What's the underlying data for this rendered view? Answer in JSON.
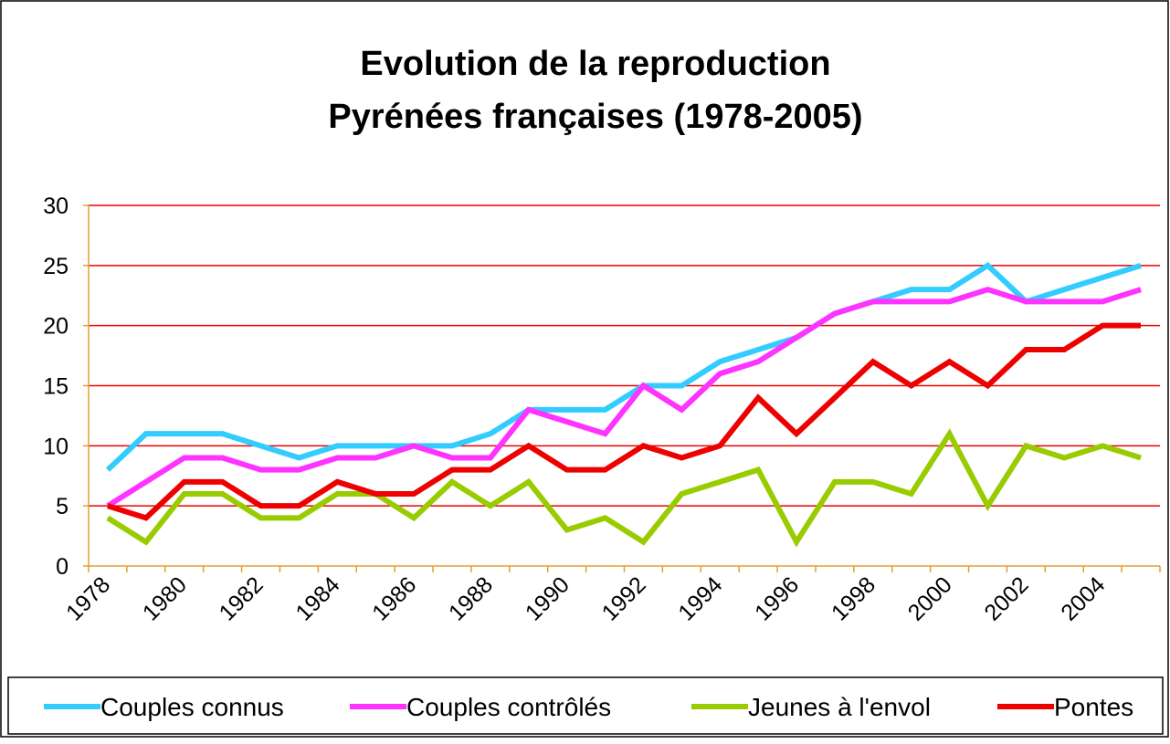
{
  "chart_data": {
    "type": "line",
    "title": "Evolution de la reproduction",
    "subtitle": "Pyrénées françaises (1978-2005)",
    "categories": [
      "1978",
      null,
      "1980",
      null,
      "1982",
      null,
      "1984",
      null,
      "1986",
      null,
      "1988",
      null,
      "1990",
      null,
      "1992",
      null,
      "1994",
      null,
      "1996",
      null,
      "1998",
      null,
      "2000",
      null,
      "2002",
      null,
      "2004",
      null
    ],
    "series": [
      {
        "name": "Couples connus",
        "color": "#33ccff",
        "values": [
          8,
          11,
          11,
          11,
          10,
          9,
          10,
          10,
          10,
          10,
          11,
          13,
          13,
          13,
          15,
          15,
          17,
          18,
          19,
          21,
          22,
          23,
          23,
          25,
          22,
          23,
          24,
          25
        ]
      },
      {
        "name": "Couples contrôlés",
        "color": "#ff33ff",
        "values": [
          5,
          7,
          9,
          9,
          8,
          8,
          9,
          9,
          10,
          9,
          9,
          13,
          12,
          11,
          15,
          13,
          16,
          17,
          19,
          21,
          22,
          22,
          22,
          23,
          22,
          22,
          22,
          23
        ]
      },
      {
        "name": "Jeunes à l'envol",
        "color": "#99cc00",
        "values": [
          4,
          2,
          6,
          6,
          4,
          4,
          6,
          6,
          4,
          7,
          5,
          7,
          3,
          4,
          2,
          6,
          7,
          8,
          2,
          7,
          7,
          6,
          11,
          5,
          10,
          9,
          10,
          9
        ]
      },
      {
        "name": "Pontes",
        "color": "#ee0000",
        "values": [
          5,
          4,
          7,
          7,
          5,
          5,
          7,
          6,
          6,
          8,
          8,
          10,
          8,
          8,
          10,
          9,
          10,
          14,
          11,
          14,
          17,
          15,
          17,
          15,
          18,
          18,
          20,
          20
        ]
      }
    ],
    "ylim": [
      0,
      30
    ],
    "yticks": [
      0,
      5,
      10,
      15,
      20,
      25,
      30
    ],
    "grid": true,
    "legend": "bottom"
  }
}
